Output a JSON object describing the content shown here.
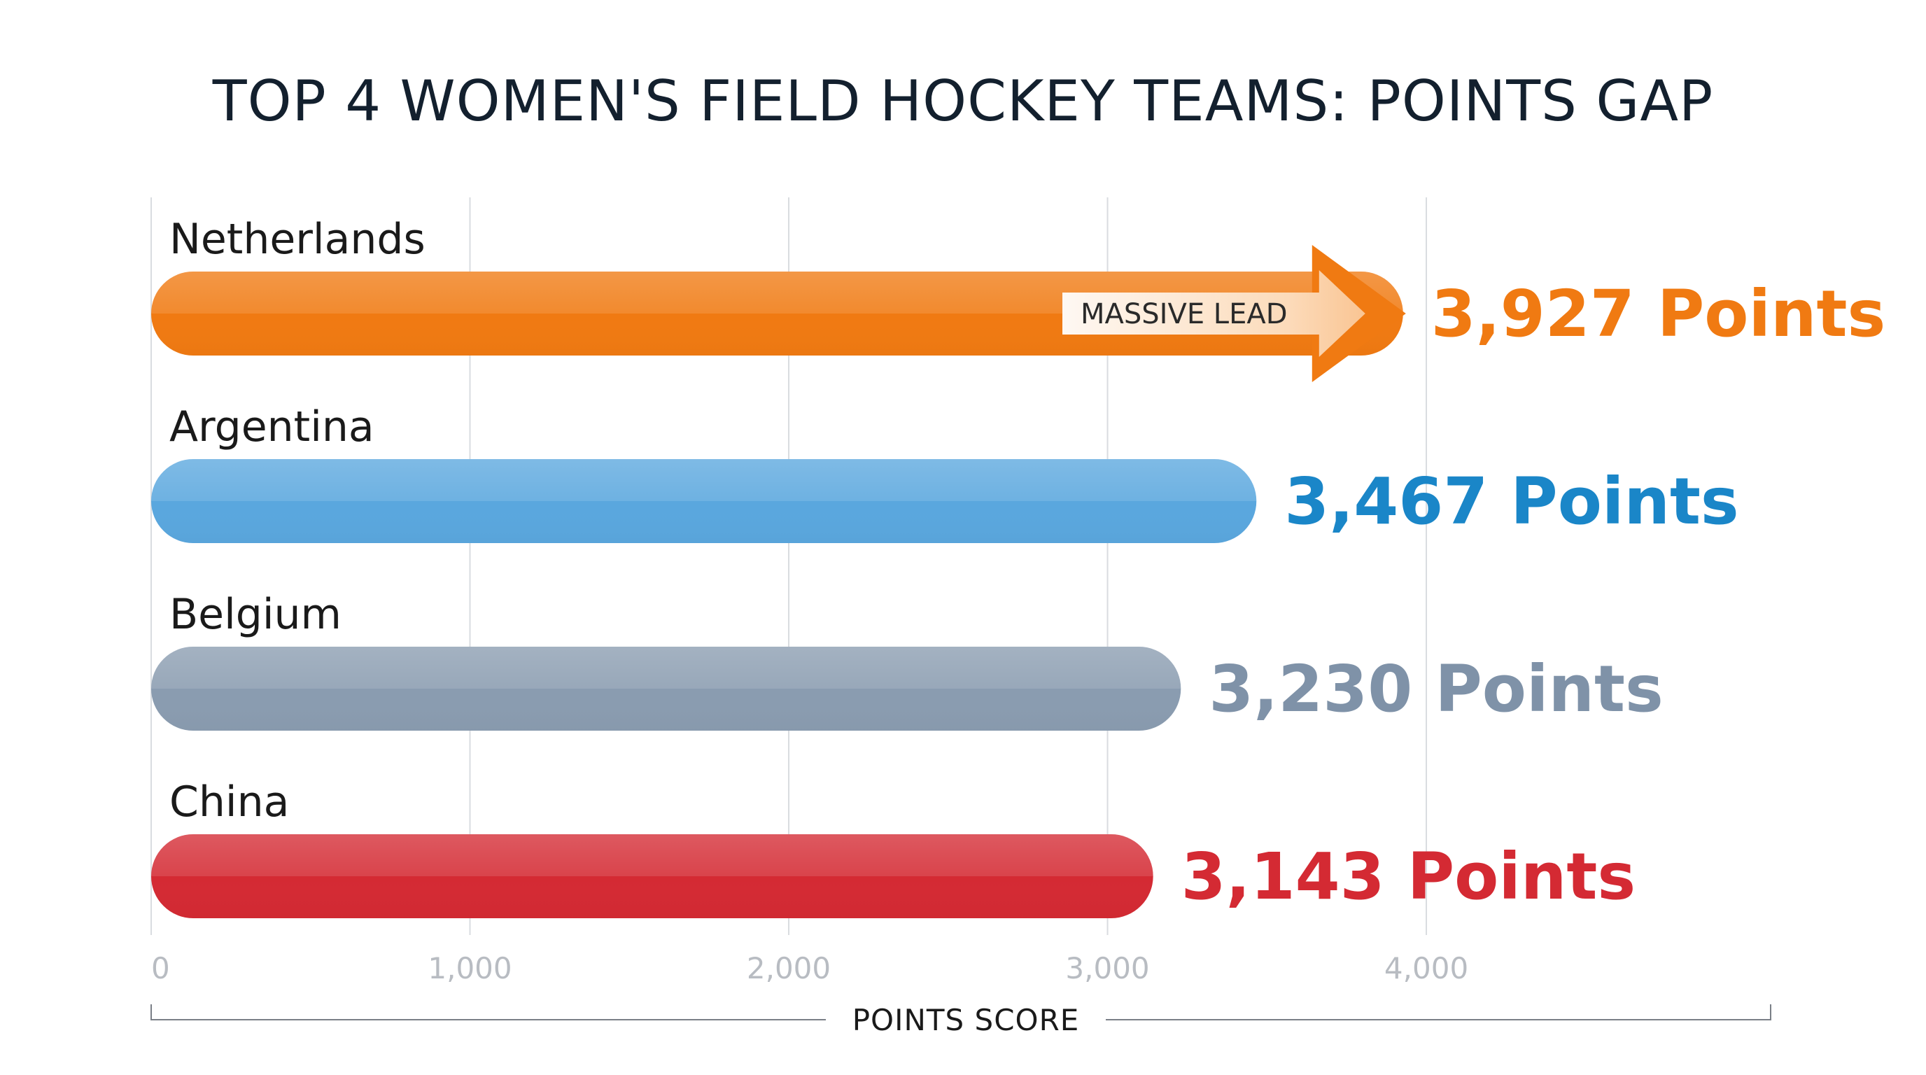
{
  "chart_data": {
    "type": "bar",
    "orientation": "horizontal",
    "title": "TOP 4 WOMEN'S FIELD HOCKEY TEAMS: POINTS GAP",
    "xlabel": "POINTS SCORE",
    "ylabel": "",
    "xlim": [
      0,
      5080
    ],
    "xticks": [
      0,
      1000,
      2000,
      3000,
      4000
    ],
    "xtick_labels": [
      "0",
      "1,000",
      "2,000",
      "3,000",
      "4,000"
    ],
    "grid": true,
    "legend": "none",
    "categories": [
      "Netherlands",
      "Argentina",
      "Belgium",
      "China"
    ],
    "values": [
      3927,
      3467,
      3230,
      3143
    ],
    "value_labels": [
      "3,927 Points",
      "3,467 Points",
      "3,230 Points",
      "3,143 Points"
    ],
    "colors": [
      "#f07a12",
      "#5aa7de",
      "#8a9cb0",
      "#d42a33"
    ],
    "label_colors": [
      "#f07a12",
      "#1a86c8",
      "#7f92a8",
      "#d42a33"
    ],
    "annotations": [
      {
        "text": "MASSIVE LEAD",
        "category": "Netherlands",
        "type": "arrow"
      }
    ]
  }
}
